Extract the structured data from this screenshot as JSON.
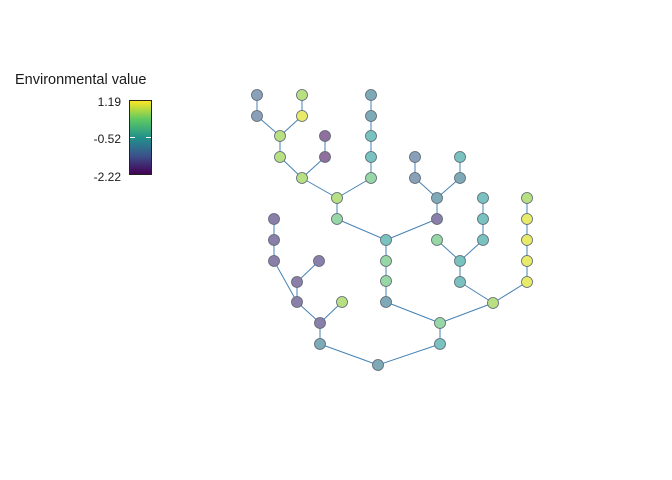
{
  "legend": {
    "title": "Environmental value",
    "max_label": "1.19",
    "mid_label": "-0.52",
    "min_label": "-2.22",
    "colors": [
      "#fde725",
      "#5ec962",
      "#21918c",
      "#3b528b",
      "#440154"
    ]
  },
  "node_color": "node color encodes environmental value (viridis, semi-transparent)",
  "edge_color": "#4682b4"
}
